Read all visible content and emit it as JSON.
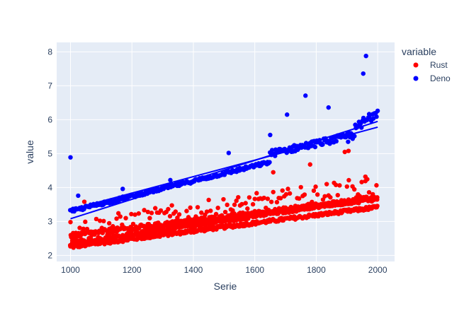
{
  "chart_data": {
    "type": "scatter",
    "xlabel": "Serie",
    "ylabel": "value",
    "xlim": [
      955,
      2055
    ],
    "ylim": [
      1.82,
      8.28
    ],
    "x_ticks": [
      1000,
      1200,
      1400,
      1600,
      1800,
      2000
    ],
    "y_ticks": [
      2,
      3,
      4,
      5,
      6,
      7,
      8
    ],
    "grid": true,
    "legend": {
      "title": "variable",
      "placement": "right"
    },
    "series": [
      {
        "name": "Rust",
        "color": "#ff0000",
        "bands": [
          {
            "x_start": 1000,
            "x_end": 2000,
            "y_start": 2.25,
            "y_end": 3.42,
            "jitter": 0.05
          },
          {
            "x_start": 1000,
            "x_end": 2000,
            "y_start": 2.33,
            "y_end": 3.72,
            "jitter": 0.06
          },
          {
            "x_start": 1000,
            "x_end": 2000,
            "y_start": 2.58,
            "y_end": 3.68,
            "jitter": 0.07
          }
        ],
        "scatter": {
          "x_start": 1000,
          "x_end": 2000,
          "y_start": 2.7,
          "y_end": 4.0,
          "spread": 0.35
        },
        "trend_lines": [
          {
            "x": [
              1000,
              2000
            ],
            "y": [
              2.25,
              3.42
            ]
          },
          {
            "x": [
              1000,
              2000
            ],
            "y": [
              2.33,
              3.72
            ]
          },
          {
            "x": [
              1000,
              2000
            ],
            "y": [
              2.58,
              3.68
            ]
          }
        ],
        "outliers": [
          {
            "x": 1045,
            "y": 3.58
          },
          {
            "x": 1660,
            "y": 4.45
          },
          {
            "x": 1780,
            "y": 4.68
          },
          {
            "x": 1893,
            "y": 5.05
          },
          {
            "x": 1905,
            "y": 5.08
          },
          {
            "x": 1960,
            "y": 4.32
          }
        ]
      },
      {
        "name": "Deno",
        "color": "#0000ff",
        "bands": [
          {
            "x_start": 1000,
            "x_end": 1650,
            "y_start": 3.3,
            "y_end": 4.75,
            "jitter": 0.05
          },
          {
            "x_start": 1650,
            "x_end": 1900,
            "y_start": 5.0,
            "y_end": 5.5,
            "jitter": 0.1
          },
          {
            "x_start": 1900,
            "x_end": 2000,
            "y_start": 5.45,
            "y_end": 6.3,
            "jitter": 0.18
          }
        ],
        "trend_lines": [
          {
            "x": [
              1000,
              2000
            ],
            "y": [
              3.08,
              5.95
            ]
          },
          {
            "x": [
              1000,
              2000
            ],
            "y": [
              3.35,
              5.78
            ]
          }
        ],
        "outliers": [
          {
            "x": 1000,
            "y": 4.89
          },
          {
            "x": 1025,
            "y": 3.76
          },
          {
            "x": 1170,
            "y": 3.96
          },
          {
            "x": 1325,
            "y": 4.22
          },
          {
            "x": 1515,
            "y": 5.02
          },
          {
            "x": 1650,
            "y": 5.55
          },
          {
            "x": 1705,
            "y": 6.15
          },
          {
            "x": 1765,
            "y": 6.71
          },
          {
            "x": 1840,
            "y": 6.36
          },
          {
            "x": 1953,
            "y": 7.36
          },
          {
            "x": 1962,
            "y": 7.88
          }
        ]
      }
    ]
  }
}
